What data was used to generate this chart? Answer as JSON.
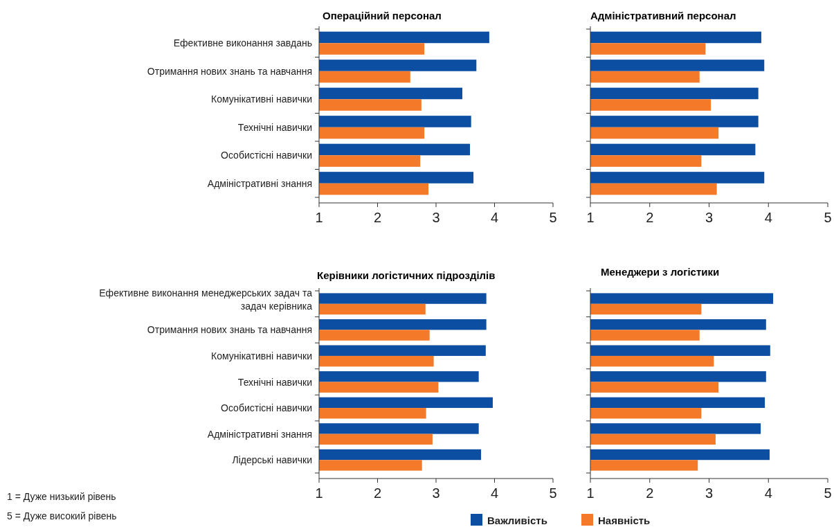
{
  "chart_data": [
    {
      "type": "bar",
      "orientation": "horizontal",
      "title": "Операційний персонал",
      "categories": [
        "Ефективне виконання завдань",
        "Отримання нових знань та навчання",
        "Комунікативні навички",
        "Технічні навички",
        "Особистісні навички",
        "Адміністративні знання"
      ],
      "series": [
        {
          "color": "#0b4ea2",
          "values": [
            3.91,
            3.69,
            3.45,
            3.6,
            3.58,
            3.64
          ]
        },
        {
          "color": "#f47a2a",
          "values": [
            2.8,
            2.56,
            2.75,
            2.8,
            2.73,
            2.87
          ]
        }
      ],
      "xlim": [
        1,
        5
      ],
      "xticks": [
        1,
        2,
        3,
        4,
        5
      ],
      "grid": false,
      "legend": false
    },
    {
      "type": "bar",
      "orientation": "horizontal",
      "title": "Адміністративний персонал",
      "categories": [
        null,
        null,
        null,
        null,
        null,
        null
      ],
      "series": [
        {
          "color": "#0b4ea2",
          "values": [
            3.88,
            3.93,
            3.83,
            3.83,
            3.78,
            3.93
          ]
        },
        {
          "color": "#f47a2a",
          "values": [
            2.94,
            2.84,
            3.03,
            3.16,
            2.87,
            3.13
          ]
        }
      ],
      "xlim": [
        1,
        5
      ],
      "xticks": [
        1,
        2,
        3,
        4,
        5
      ],
      "grid": false,
      "legend": false
    },
    {
      "type": "bar",
      "orientation": "horizontal",
      "title": "Керівники логістичних підрозділів",
      "categories": [
        "Ефективне виконання менеджерських задач та задач керівника",
        "Отримання нових знань та навчання",
        "Комунікативні навички",
        "Технічні навички",
        "Особистісні навички",
        "Адміністративні знання",
        "Лідерські навички"
      ],
      "series": [
        {
          "name": "Важливість",
          "color": "#0b4ea2",
          "values": [
            3.86,
            3.86,
            3.85,
            3.73,
            3.97,
            3.73,
            3.77
          ]
        },
        {
          "name": "Наявність",
          "color": "#f47a2a",
          "values": [
            2.82,
            2.89,
            2.96,
            3.04,
            2.83,
            2.94,
            2.76
          ]
        }
      ],
      "xlim": [
        1,
        5
      ],
      "xticks": [
        1,
        2,
        3,
        4,
        5
      ],
      "grid": false,
      "legend": "bottom",
      "annotations": [
        "1 = Дуже низький рівень",
        "5 = Дуже високий рівень"
      ]
    },
    {
      "type": "bar",
      "orientation": "horizontal",
      "title": "Менеджери з логістики",
      "categories": [
        null,
        null,
        null,
        null,
        null,
        null,
        null
      ],
      "series": [
        {
          "color": "#0b4ea2",
          "values": [
            4.08,
            3.96,
            4.03,
            3.96,
            3.94,
            3.87,
            4.02
          ]
        },
        {
          "color": "#f47a2a",
          "values": [
            2.87,
            2.84,
            3.08,
            3.16,
            2.87,
            3.11,
            2.81
          ]
        }
      ],
      "xlim": [
        1,
        5
      ],
      "xticks": [
        1,
        2,
        3,
        4,
        5
      ],
      "grid": false,
      "legend": false
    }
  ]
}
